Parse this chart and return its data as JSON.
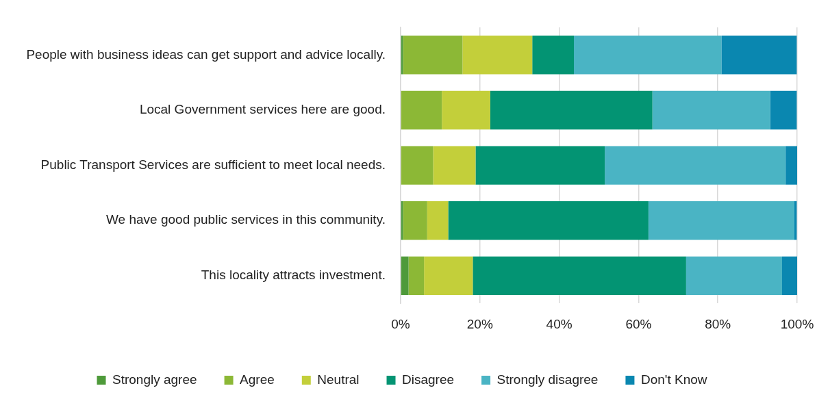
{
  "chart_data": {
    "type": "bar",
    "orientation": "horizontal",
    "stacked": true,
    "categories": [
      "People with business ideas can get support and advice locally.",
      "Local Government services here are good.",
      "Public Transport Services are sufficient to meet local needs.",
      "We have good public services in this community.",
      "This locality attracts investment."
    ],
    "series": [
      {
        "name": "Strongly agree",
        "color": "#4e9a3a",
        "values": [
          0.6,
          0,
          0,
          0.6,
          2.0
        ]
      },
      {
        "name": "Agree",
        "color": "#8cb836",
        "values": [
          15.0,
          10.4,
          8.2,
          6.1,
          3.9
        ]
      },
      {
        "name": "Neutral",
        "color": "#c3cf3a",
        "values": [
          17.6,
          12.2,
          10.7,
          5.3,
          12.3
        ]
      },
      {
        "name": "Disagree",
        "color": "#039473",
        "values": [
          10.5,
          40.9,
          32.6,
          50.5,
          53.8
        ]
      },
      {
        "name": "Strongly disagree",
        "color": "#4ab4c4",
        "values": [
          37.2,
          29.7,
          45.6,
          36.8,
          24.2
        ]
      },
      {
        "name": "Don't Know",
        "color": "#0a87b0",
        "values": [
          19.0,
          6.7,
          2.9,
          0.6,
          3.8
        ]
      }
    ],
    "xlim": [
      0,
      100
    ],
    "xticks": [
      {
        "value": 0,
        "label": "0%"
      },
      {
        "value": 20,
        "label": "20%"
      },
      {
        "value": 40,
        "label": "40%"
      },
      {
        "value": 60,
        "label": "60%"
      },
      {
        "value": 80,
        "label": "80%"
      },
      {
        "value": 100,
        "label": "100%"
      }
    ],
    "grid": "x",
    "legend": "bottom"
  }
}
